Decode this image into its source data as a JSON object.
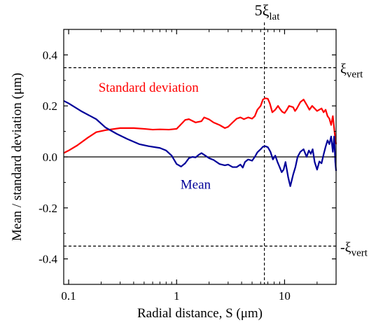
{
  "chart_data": {
    "type": "line",
    "xscale": "log",
    "xlabel_parts": [
      "Radial distance, S (",
      "μ",
      "m)"
    ],
    "ylabel": "Mean / standard deviation (μm)",
    "xlim": [
      0.09,
      30
    ],
    "ylim": [
      -0.5,
      0.5
    ],
    "xticks": [
      {
        "value": 0.1,
        "label": "0.1"
      },
      {
        "value": 1,
        "label": "1"
      },
      {
        "value": 10,
        "label": "10"
      }
    ],
    "yticks": [
      {
        "value": 0.4,
        "label": "0.4"
      },
      {
        "value": 0.2,
        "label": "0.2"
      },
      {
        "value": 0.0,
        "label": "0.0"
      },
      {
        "value": -0.2,
        "label": "-0.2"
      },
      {
        "value": -0.4,
        "label": "-0.4"
      }
    ],
    "reference_lines": [
      {
        "orientation": "horizontal",
        "value": 0.35,
        "label": "ξ",
        "sub": "vert",
        "color": "#000000"
      },
      {
        "orientation": "horizontal",
        "value": -0.35,
        "label": "-ξ",
        "sub": "vert",
        "color": "#000000"
      },
      {
        "orientation": "vertical",
        "value": 6.5,
        "label": "5ξ",
        "sub": "lat",
        "color": "#000000"
      },
      {
        "orientation": "horizontal",
        "value": 0.0,
        "label": "",
        "sub": "",
        "color": "#000000"
      }
    ],
    "series": [
      {
        "name": "Standard deviation",
        "color": "#ff0000",
        "label_at": [
          0.55,
          0.255
        ],
        "points": [
          [
            0.09,
            0.015
          ],
          [
            0.1,
            0.025
          ],
          [
            0.12,
            0.045
          ],
          [
            0.15,
            0.075
          ],
          [
            0.18,
            0.097
          ],
          [
            0.22,
            0.105
          ],
          [
            0.3,
            0.113
          ],
          [
            0.4,
            0.113
          ],
          [
            0.5,
            0.11
          ],
          [
            0.6,
            0.107
          ],
          [
            0.7,
            0.108
          ],
          [
            0.85,
            0.107
          ],
          [
            1.0,
            0.11
          ],
          [
            1.1,
            0.128
          ],
          [
            1.2,
            0.145
          ],
          [
            1.3,
            0.148
          ],
          [
            1.5,
            0.135
          ],
          [
            1.7,
            0.14
          ],
          [
            1.8,
            0.155
          ],
          [
            2.0,
            0.147
          ],
          [
            2.2,
            0.135
          ],
          [
            2.5,
            0.125
          ],
          [
            2.8,
            0.113
          ],
          [
            3.0,
            0.118
          ],
          [
            3.3,
            0.135
          ],
          [
            3.6,
            0.15
          ],
          [
            3.9,
            0.155
          ],
          [
            4.2,
            0.148
          ],
          [
            4.6,
            0.155
          ],
          [
            5.0,
            0.15
          ],
          [
            5.3,
            0.16
          ],
          [
            5.6,
            0.185
          ],
          [
            6.0,
            0.2
          ],
          [
            6.3,
            0.225
          ],
          [
            6.6,
            0.23
          ],
          [
            7.0,
            0.228
          ],
          [
            7.3,
            0.21
          ],
          [
            7.7,
            0.175
          ],
          [
            8.2,
            0.185
          ],
          [
            8.7,
            0.2
          ],
          [
            9.0,
            0.19
          ],
          [
            9.5,
            0.177
          ],
          [
            10,
            0.172
          ],
          [
            10.5,
            0.185
          ],
          [
            11,
            0.2
          ],
          [
            12,
            0.195
          ],
          [
            12.5,
            0.18
          ],
          [
            13,
            0.19
          ],
          [
            14,
            0.215
          ],
          [
            15,
            0.225
          ],
          [
            16,
            0.205
          ],
          [
            17,
            0.185
          ],
          [
            18,
            0.2
          ],
          [
            19,
            0.19
          ],
          [
            20,
            0.18
          ],
          [
            22,
            0.19
          ],
          [
            23,
            0.175
          ],
          [
            24,
            0.185
          ],
          [
            25,
            0.16
          ],
          [
            26,
            0.15
          ],
          [
            27,
            0.125
          ],
          [
            28,
            0.16
          ],
          [
            29,
            0.1
          ],
          [
            29.5,
            0.07
          ],
          [
            30,
            0.05
          ]
        ]
      },
      {
        "name": "Mean",
        "color": "#000099",
        "label_at": [
          1.5,
          -0.125
        ],
        "points": [
          [
            0.09,
            0.22
          ],
          [
            0.1,
            0.21
          ],
          [
            0.13,
            0.18
          ],
          [
            0.18,
            0.148
          ],
          [
            0.22,
            0.115
          ],
          [
            0.28,
            0.09
          ],
          [
            0.35,
            0.07
          ],
          [
            0.45,
            0.05
          ],
          [
            0.55,
            0.042
          ],
          [
            0.7,
            0.035
          ],
          [
            0.8,
            0.025
          ],
          [
            0.9,
            0.005
          ],
          [
            1.0,
            -0.028
          ],
          [
            1.1,
            -0.038
          ],
          [
            1.2,
            -0.025
          ],
          [
            1.3,
            -0.005
          ],
          [
            1.4,
            0.0
          ],
          [
            1.5,
            -0.002
          ],
          [
            1.6,
            0.008
          ],
          [
            1.7,
            0.015
          ],
          [
            1.8,
            0.008
          ],
          [
            2.0,
            -0.005
          ],
          [
            2.2,
            -0.012
          ],
          [
            2.5,
            -0.028
          ],
          [
            2.8,
            -0.033
          ],
          [
            3.0,
            -0.03
          ],
          [
            3.3,
            -0.04
          ],
          [
            3.6,
            -0.04
          ],
          [
            3.9,
            -0.03
          ],
          [
            4.1,
            -0.042
          ],
          [
            4.3,
            -0.02
          ],
          [
            4.6,
            -0.01
          ],
          [
            5.0,
            -0.015
          ],
          [
            5.3,
            0.0
          ],
          [
            5.6,
            0.018
          ],
          [
            6.0,
            0.03
          ],
          [
            6.3,
            0.04
          ],
          [
            6.6,
            0.042
          ],
          [
            7.0,
            0.038
          ],
          [
            7.4,
            0.02
          ],
          [
            7.8,
            -0.01
          ],
          [
            8.2,
            0.005
          ],
          [
            8.6,
            -0.02
          ],
          [
            9.0,
            -0.04
          ],
          [
            9.4,
            -0.06
          ],
          [
            9.8,
            -0.05
          ],
          [
            10.2,
            -0.02
          ],
          [
            10.8,
            -0.08
          ],
          [
            11.3,
            -0.115
          ],
          [
            12,
            -0.07
          ],
          [
            12.6,
            -0.04
          ],
          [
            13.2,
            0.0
          ],
          [
            14,
            0.02
          ],
          [
            15,
            0.03
          ],
          [
            16,
            0.0
          ],
          [
            16.8,
            0.025
          ],
          [
            17.5,
            0.012
          ],
          [
            18.2,
            0.03
          ],
          [
            19,
            -0.02
          ],
          [
            20,
            -0.05
          ],
          [
            21,
            -0.018
          ],
          [
            22,
            -0.025
          ],
          [
            23,
            0.01
          ],
          [
            24,
            0.04
          ],
          [
            25,
            0.065
          ],
          [
            26,
            0.05
          ],
          [
            27,
            0.08
          ],
          [
            28,
            0.02
          ],
          [
            28.8,
            0.08
          ],
          [
            29.5,
            -0.02
          ],
          [
            30,
            -0.055
          ]
        ]
      }
    ]
  }
}
